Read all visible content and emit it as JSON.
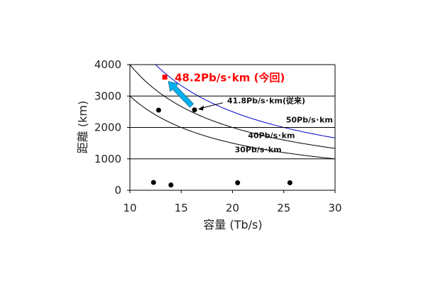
{
  "chart_data": {
    "type": "scatter",
    "xlabel": "容量 (Tb/s)",
    "ylabel": "距離 (km)",
    "xlim": [
      10,
      30
    ],
    "ylim": [
      0,
      4000
    ],
    "x_ticks": [
      10,
      15,
      20,
      25,
      30
    ],
    "y_ticks": [
      0,
      1000,
      2000,
      3000,
      4000
    ],
    "grid": "horizontal",
    "points": [
      {
        "x": 12.3,
        "y": 250
      },
      {
        "x": 12.8,
        "y": 2550
      },
      {
        "x": 14.0,
        "y": 170
      },
      {
        "x": 16.3,
        "y": 2560
      },
      {
        "x": 20.5,
        "y": 240
      },
      {
        "x": 25.6,
        "y": 240
      }
    ],
    "highlight_point": {
      "x": 13.4,
      "y": 3600,
      "label": "48.2Pb/s･km (今回)",
      "color": "#ff0000"
    },
    "reference_point_label": "41.8Pb/s･km(従来)",
    "curves": [
      {
        "name": "30Pb/s･km",
        "product": 30000,
        "color": "#000000",
        "label_x": 22.5,
        "label_y": 1300
      },
      {
        "name": "40Pb/s･km",
        "product": 40000,
        "color": "#000000",
        "label_x": 23.8,
        "label_y": 1750
      },
      {
        "name": "50Pb/s･km",
        "product": 50000,
        "color": "#0000cc",
        "label_x": 27.5,
        "label_y": 2250
      }
    ],
    "arrow_color": "#00b0f0"
  }
}
